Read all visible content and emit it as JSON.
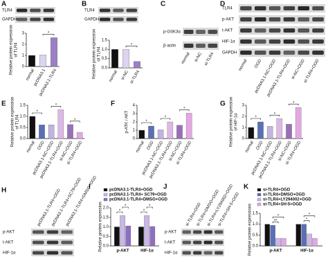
{
  "panel_labels": [
    "A",
    "B",
    "C",
    "D",
    "E",
    "F",
    "G",
    "H",
    "I",
    "J",
    "K"
  ],
  "blots": [
    {
      "rows": [
        "TLR4",
        "GAPDH"
      ]
    },
    {
      "rows": [
        "TLR4",
        "GAPDH"
      ]
    },
    {
      "rows": [
        "p-GSK3α",
        "β-actin"
      ],
      "columns": [
        "normal",
        "si-NC",
        "si-TLR4"
      ]
    },
    {
      "rows": [
        "TLR4",
        "p-AKT",
        "t-AKT",
        "HIF-1α",
        "GAPDH"
      ],
      "columns": [
        "normal",
        "OGD",
        "pcDNA3.1-NC+OGD",
        "pcDNA3.1-TLR4+OGD",
        "si-NC+OGD",
        "si-TLR4+OGD"
      ]
    },
    {
      "rows": [
        "p-AKT",
        "t-AKT",
        "HIF-1α"
      ],
      "columns": [
        "pcDNA3.1-TLR4+OGD",
        "pcDNA3.1-TLR4+SC79+OGD",
        "pcDNA3.1-TLR4+DMSO+OGD"
      ]
    },
    {
      "rows": [
        "p-AKT",
        "t-AKT",
        "HIF-1α"
      ],
      "columns": [
        "si-TLR4+OGD",
        "si-TLR4+DMSO+OGD",
        "si-TLR4+LY294002+OGD",
        "si-TLR4+SH-5+OGD"
      ]
    }
  ],
  "chart_data": [
    {
      "type": "bar",
      "y_label": [
        "Relative protein expression",
        "of TLR4"
      ],
      "categories": [
        "normal",
        "pcDNA3.1",
        "pcDNA3.1-TLR4"
      ],
      "values": [
        1,
        1.05,
        2.6
      ],
      "colors": [
        "#111111",
        "#dcd4f0",
        "#9b7fc4"
      ],
      "ylim": [
        0,
        3
      ],
      "yticks": [
        0,
        1,
        2,
        3
      ],
      "sig": [
        {
          "bars": [
            1,
            2
          ],
          "label": "*"
        }
      ]
    },
    {
      "type": "bar",
      "y_label": [
        "Relative protein expression",
        "of TLR4"
      ],
      "categories": [
        "normal",
        "si-NC",
        "si-TLR4"
      ],
      "values": [
        1,
        1,
        0.35
      ],
      "colors": [
        "#111111",
        "#dcd4f0",
        "#9b7fc4"
      ],
      "ylim": [
        0,
        1.5
      ],
      "yticks": [
        {
          "value": 0,
          "label": "0.0"
        },
        {
          "value": 0.5,
          "label": "0.5"
        },
        {
          "value": 1,
          "label": "1.0"
        },
        1.5
      ],
      "sig": [
        {
          "bars": [
            1,
            2
          ],
          "label": "*"
        }
      ]
    },
    {
      "type": "bar",
      "y_label": [
        "Relative protein expression",
        "of TLR4"
      ],
      "categories": [
        "normal",
        "OGD",
        "pcDNA3.1-NC+OGD",
        "pcDNA3.1-TLR4+OGD",
        "si-NC+OGD",
        "si-TLR4+OGD"
      ],
      "values": [
        1,
        0.62,
        0.62,
        1.3,
        0.63,
        0.28
      ],
      "colors": [
        "#111111",
        "#5b6fb5",
        "#c2b4e0",
        "#ddb8e6",
        "#9a6fb8",
        "#e3a8e3"
      ],
      "ylim": [
        0,
        1.5
      ],
      "yticks": [
        {
          "value": 0,
          "label": "0.0"
        },
        {
          "value": 0.5,
          "label": "0.5"
        },
        {
          "value": 1,
          "label": "1.0"
        },
        1.5
      ],
      "sig": [
        {
          "bars": [
            0,
            1
          ],
          "label": "*"
        },
        {
          "bars": [
            2,
            3
          ],
          "label": "*"
        },
        {
          "bars": [
            4,
            5
          ],
          "label": "*"
        }
      ]
    },
    {
      "type": "bar",
      "y_label": [
        "p-ATK / AKT"
      ],
      "categories": [
        "normal",
        "OGD",
        "pcDNA3.1-NC+OGD",
        "pcDNA3.1-TLR4+OGD",
        "si-NC+OGD",
        "si-TLR4+OGD"
      ],
      "values": [
        1,
        1.5,
        1.05,
        2.0,
        1.6,
        3.05
      ],
      "colors": [
        "#111111",
        "#5b6fb5",
        "#c2b4e0",
        "#ddb8e6",
        "#9a6fb8",
        "#e3a8e3"
      ],
      "ylim": [
        0,
        4
      ],
      "yticks": [
        0,
        1,
        2,
        3,
        4
      ],
      "sig": [
        {
          "bars": [
            0,
            1
          ],
          "label": "*"
        },
        {
          "bars": [
            2,
            3
          ],
          "label": "*"
        },
        {
          "bars": [
            4,
            5
          ],
          "label": "*"
        }
      ]
    },
    {
      "type": "bar",
      "y_label": [
        "Relative protein expression",
        "of HIF-1α"
      ],
      "categories": [
        "normal",
        "OGD",
        "pcDNA3.1-NC+OGD",
        "pcDNA3.1-TLR4+OGD",
        "si-NC+OGD",
        "si-TLR4+OGD"
      ],
      "values": [
        1,
        1.5,
        1.1,
        1.8,
        1.3,
        2.8
      ],
      "colors": [
        "#111111",
        "#5b6fb5",
        "#c2b4e0",
        "#ddb8e6",
        "#9a6fb8",
        "#e3a8e3"
      ],
      "ylim": [
        0,
        3
      ],
      "yticks": [
        0,
        1,
        2,
        3
      ],
      "sig": [
        {
          "bars": [
            0,
            1
          ],
          "label": "*"
        },
        {
          "bars": [
            2,
            3
          ],
          "label": "*"
        },
        {
          "bars": [
            4,
            5
          ],
          "label": "*"
        }
      ]
    },
    {
      "type": "grouped_bar",
      "y_label": [
        "Relative protein expression"
      ],
      "categories": [
        "p-AKT",
        "HIF-1α"
      ],
      "series": [
        {
          "name": "pcDNA3.1-TLR4+OGD",
          "color": "#111111",
          "values": [
            1,
            1
          ]
        },
        {
          "name": "pcDNA3.1-TLR4+ SC79+OGD",
          "color": "#c9b8e6",
          "values": [
            1.6,
            1.6
          ]
        },
        {
          "name": "pcDNA3.1-TLR4+DMSO+OGD",
          "color": "#8d6fc0",
          "values": [
            1.05,
            1.02
          ]
        }
      ],
      "ylim": [
        0,
        2
      ],
      "yticks": [
        {
          "value": 0,
          "label": "0.0"
        },
        {
          "value": 0.5,
          "label": "0.5"
        },
        {
          "value": 1,
          "label": "1.0"
        },
        {
          "value": 1.5,
          "label": "1.5"
        },
        {
          "value": 2,
          "label": "2.0"
        }
      ],
      "sig": [
        {
          "group": 0,
          "bars": [
            0,
            1
          ],
          "label": "*"
        },
        {
          "group": 0,
          "bars": [
            1,
            2
          ],
          "label": "*"
        },
        {
          "group": 1,
          "bars": [
            0,
            1
          ],
          "label": "*"
        },
        {
          "group": 1,
          "bars": [
            1,
            2
          ],
          "label": "*"
        }
      ]
    },
    {
      "type": "grouped_bar",
      "y_label": [
        "Relative protein expressions"
      ],
      "categories": [
        "p-AKT",
        "HIF-1α"
      ],
      "series": [
        {
          "name": "si-TLR4+OGD",
          "color": "#111111",
          "values": [
            1,
            1
          ]
        },
        {
          "name": "si-TLR4+DMSO+OGD",
          "color": "#5b6fb5",
          "values": [
            0.95,
            1
          ]
        },
        {
          "name": "si-TLR4+LY294002+OGD",
          "color": "#c9b8e6",
          "values": [
            0.35,
            0.55
          ]
        },
        {
          "name": "si-TLR4+SH-5+OGD",
          "color": "#e3a8e3",
          "values": [
            0.35,
            0.35
          ]
        }
      ],
      "ylim": [
        0,
        1.5
      ],
      "yticks": [
        {
          "value": 0,
          "label": "0.0"
        },
        {
          "value": 0.5,
          "label": "0.5"
        },
        {
          "value": 1,
          "label": "1.0"
        },
        1.5
      ],
      "sig": [
        {
          "group": 0,
          "bars": [
            1,
            2
          ],
          "label": "**"
        },
        {
          "group": 0,
          "bars": [
            1,
            3
          ],
          "label": "*"
        },
        {
          "group": 1,
          "bars": [
            1,
            2
          ],
          "label": "*"
        },
        {
          "group": 1,
          "bars": [
            1,
            3
          ],
          "label": "*"
        }
      ]
    }
  ]
}
